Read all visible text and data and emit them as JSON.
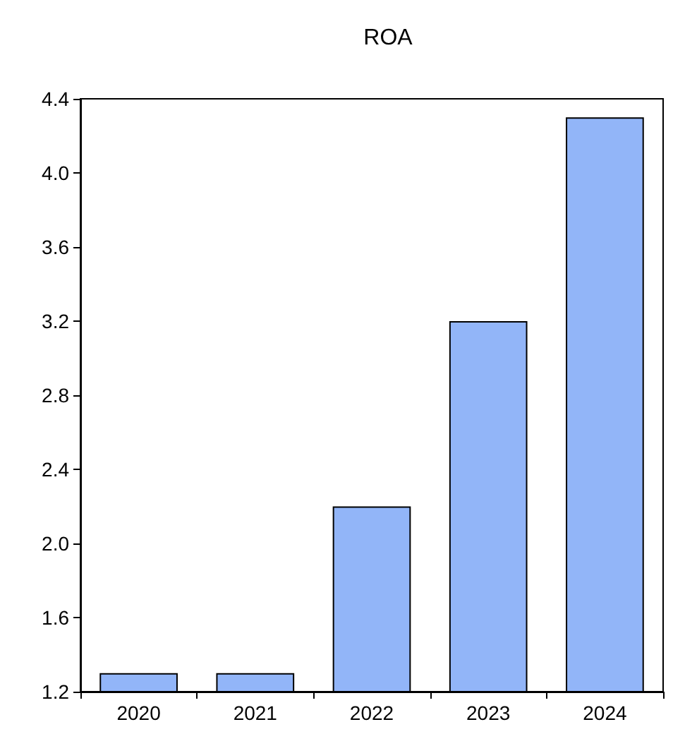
{
  "chart_data": {
    "type": "bar",
    "title": "ROA",
    "categories": [
      "2020",
      "2021",
      "2022",
      "2023",
      "2024"
    ],
    "values": [
      1.3,
      1.3,
      2.2,
      3.2,
      4.3
    ],
    "color": "#92b5f8",
    "ylim": [
      1.2,
      4.4
    ],
    "yticks": [
      1.2,
      1.6,
      {
        "value": 2.0,
        "label": "2.0"
      },
      2.4,
      2.8,
      3.2,
      3.6,
      {
        "value": 4.0,
        "label": "4.0"
      },
      4.4
    ],
    "grid": false
  }
}
